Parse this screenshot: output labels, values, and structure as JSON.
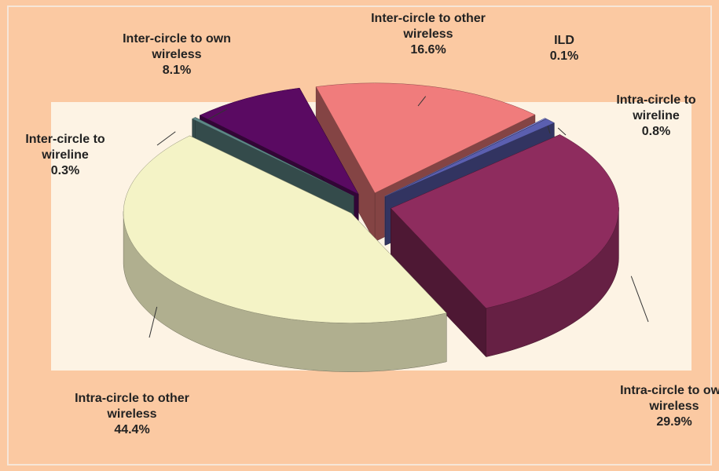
{
  "chart_data": {
    "type": "pie3d",
    "categories": [
      "Inter-circle to other wireless",
      "ILD",
      "Intra-circle to wireline",
      "Intra-circle to own wireless",
      "Intra-circle to other wireless",
      "Inter-circle to wireline",
      "Inter-circle to own wireless"
    ],
    "values": [
      16.6,
      0.1,
      0.8,
      29.9,
      44.4,
      0.3,
      8.1
    ],
    "value_labels": [
      "16.6%",
      "0.1%",
      "0.8%",
      "29.9%",
      "44.4%",
      "0.3%",
      "8.1%"
    ],
    "colors": [
      "#f07c7c",
      "#9a9cf0",
      "#5b5fb0",
      "#8e2c5e",
      "#f4f3c6",
      "#5e8888",
      "#5a0a62"
    ]
  }
}
